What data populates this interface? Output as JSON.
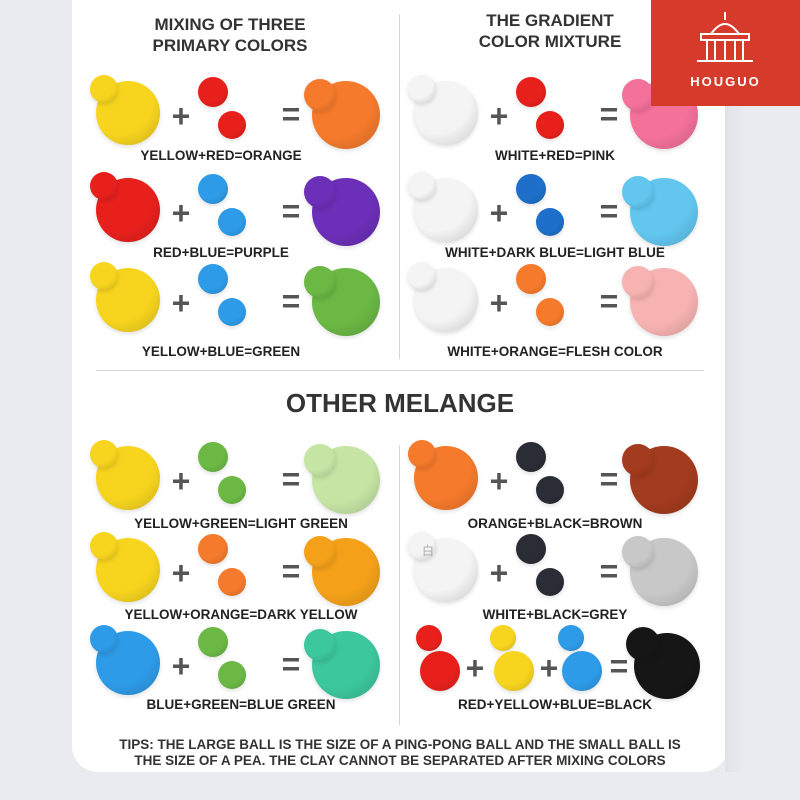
{
  "sections": {
    "primary_title": "MIXING OF THREE\nPRIMARY COLORS",
    "gradient_title": "THE GRADIENT\nCOLOR MIXTURE",
    "other_title": "OTHER MELANGE"
  },
  "logo": {
    "text": "HOUGUO",
    "color": "#d63a2b"
  },
  "white_chip": "白",
  "recipes": [
    {
      "label": "YELLOW+RED=ORANGE",
      "inputs": [
        "#f7d51e",
        "#e8201c"
      ],
      "result": "#f57a2c"
    },
    {
      "label": "RED+BLUE=PURPLE",
      "inputs": [
        "#e8201c",
        "#2e9be8"
      ],
      "result": "#6c2fb8"
    },
    {
      "label": "YELLOW+BLUE=GREEN",
      "inputs": [
        "#f7d51e",
        "#2e9be8"
      ],
      "result": "#6bb844"
    },
    {
      "label": "WHITE+RED=PINK",
      "inputs": [
        "#f4f4f4",
        "#e8201c"
      ],
      "result": "#f4719a"
    },
    {
      "label": "WHITE+DARK BLUE=LIGHT BLUE",
      "inputs": [
        "#f4f4f4",
        "#1d6fc9"
      ],
      "result": "#62c6ef"
    },
    {
      "label": "WHITE+ORANGE=FLESH COLOR",
      "inputs": [
        "#f4f4f4",
        "#f57a2c"
      ],
      "result": "#f7b3b1"
    },
    {
      "label": "YELLOW+GREEN=LIGHT GREEN",
      "inputs": [
        "#f7d51e",
        "#6bb844"
      ],
      "result": "#c5e5a4"
    },
    {
      "label": "YELLOW+ORANGE=DARK YELLOW",
      "inputs": [
        "#f7d51e",
        "#f57a2c"
      ],
      "result": "#f4a119"
    },
    {
      "label": "BLUE+GREEN=BLUE GREEN",
      "inputs": [
        "#2e9be8",
        "#6bb844"
      ],
      "result": "#3dc79d"
    },
    {
      "label": "ORANGE+BLACK=BROWN",
      "inputs": [
        "#f57a2c",
        "#2b2d36"
      ],
      "result": "#a33b1e"
    },
    {
      "label": "WHITE+BLACK=GREY",
      "inputs": [
        "#f4f4f4",
        "#2b2d36"
      ],
      "result": "#c8c8c8"
    },
    {
      "label": "RED+YELLOW+BLUE=BLACK",
      "inputs": [
        "#e8201c",
        "#f7d51e",
        "#2e9be8"
      ],
      "result": "#161616"
    }
  ],
  "tips": "TIPS: THE LARGE BALL IS THE SIZE OF A PING-PONG BALL AND THE SMALL BALL IS THE SIZE OF A PEA. THE CLAY CANNOT BE SEPARATED AFTER MIXING COLORS"
}
